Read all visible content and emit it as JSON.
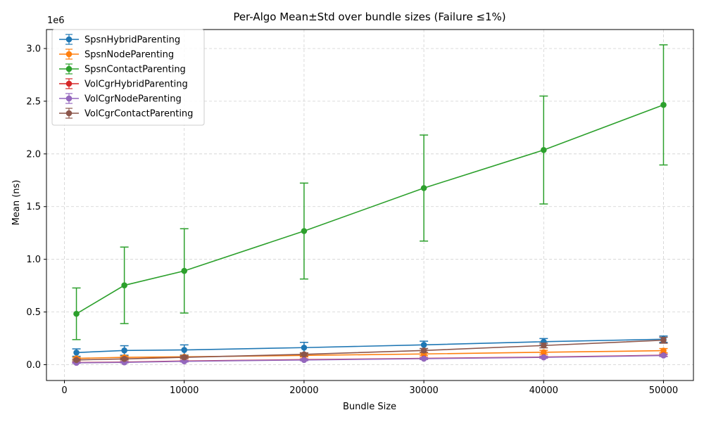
{
  "chart_data": {
    "type": "line",
    "title": "Per-Algo Mean±Std over bundle sizes (Failure ≤1%)",
    "xlabel": "Bundle Size",
    "ylabel": "Mean (ns)",
    "y_offset_label": "1e6",
    "x": [
      1000,
      5000,
      10000,
      20000,
      30000,
      40000,
      50000
    ],
    "xlim": [
      -1500,
      52500
    ],
    "ylim": [
      -150000,
      3180000
    ],
    "x_ticks": [
      0,
      10000,
      20000,
      30000,
      40000,
      50000
    ],
    "x_tick_labels": [
      "0",
      "10000",
      "20000",
      "30000",
      "40000",
      "50000"
    ],
    "y_ticks": [
      0,
      500000,
      1000000,
      1500000,
      2000000,
      2500000,
      3000000
    ],
    "y_tick_labels": [
      "0.0",
      "0.5",
      "1.0",
      "1.5",
      "2.0",
      "2.5",
      "3.0"
    ],
    "grid": true,
    "legend_position": "top-left",
    "series": [
      {
        "name": "SpsnHybridParenting",
        "color": "#1f77b4",
        "values": [
          115000,
          135000,
          140000,
          162000,
          188000,
          218000,
          242000
        ],
        "std": [
          35000,
          45000,
          48000,
          50000,
          35000,
          30000,
          30000
        ]
      },
      {
        "name": "SpsnNodeParenting",
        "color": "#ff7f0e",
        "values": [
          60000,
          70000,
          75000,
          88000,
          102000,
          118000,
          133000
        ],
        "std": [
          10000,
          12000,
          12000,
          14000,
          16000,
          18000,
          20000
        ]
      },
      {
        "name": "SpsnContactParenting",
        "color": "#2ca02c",
        "values": [
          483000,
          753000,
          890000,
          1268000,
          1676000,
          2037000,
          2465000
        ],
        "std": [
          245000,
          363000,
          400000,
          455000,
          503000,
          512000,
          570000
        ]
      },
      {
        "name": "VolCgrHybridParenting",
        "color": "#d62728",
        "values": [
          20000,
          25000,
          35000,
          48000,
          60000,
          72000,
          90000
        ],
        "std": [
          5000,
          5000,
          6000,
          7000,
          8000,
          9000,
          10000
        ]
      },
      {
        "name": "VolCgrNodeParenting",
        "color": "#9467bd",
        "values": [
          18000,
          22000,
          32000,
          45000,
          57000,
          70000,
          87000
        ],
        "std": [
          5000,
          5000,
          6000,
          7000,
          8000,
          9000,
          10000
        ]
      },
      {
        "name": "VolCgrContactParenting",
        "color": "#8c564b",
        "values": [
          45000,
          55000,
          70000,
          98000,
          135000,
          182000,
          232000
        ],
        "std": [
          8000,
          10000,
          12000,
          15000,
          18000,
          22000,
          28000
        ]
      }
    ]
  }
}
